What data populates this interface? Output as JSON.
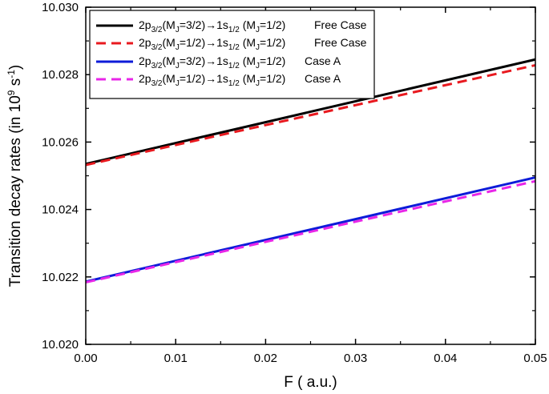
{
  "chart_data": {
    "type": "line",
    "xlabel": "F ( a.u.)",
    "ylabel": "Transition decay rates (in 10",
    "ylabel_sup1": "9",
    "ylabel_mid": " s",
    "ylabel_sup2": "-1",
    "ylabel_end": ")",
    "xlim": [
      0.0,
      0.05
    ],
    "ylim": [
      10.02,
      10.03
    ],
    "x_ticks": [
      "0.00",
      "0.01",
      "0.02",
      "0.03",
      "0.04",
      "0.05"
    ],
    "y_ticks": [
      "10.020",
      "10.022",
      "10.024",
      "10.026",
      "10.028",
      "10.030"
    ],
    "grid": false,
    "legend_position": "top-left",
    "series": [
      {
        "color": "#000000",
        "dash": "solid",
        "x": [
          0.0,
          0.05
        ],
        "y": [
          10.02535,
          10.02845
        ],
        "legend": {
          "pre": "2p",
          "sub1": "3/2",
          "a": "(M",
          "sub2": "J",
          "b": "=3/2)→1s",
          "sub3": "1/2",
          "c": " (M",
          "sub4": "J",
          "d": "=1/2)",
          "case": "Free Case"
        }
      },
      {
        "color": "#e8191f",
        "dash": "dashed",
        "x": [
          0.0,
          0.05
        ],
        "y": [
          10.02532,
          10.02828
        ],
        "legend": {
          "pre": "2p",
          "sub1": "3/2",
          "a": "(M",
          "sub2": "J",
          "b": "=1/2)→1s",
          "sub3": "1/2",
          "c": " (M",
          "sub4": "J",
          "d": "=1/2)",
          "case": "Free Case"
        }
      },
      {
        "color": "#0d1bd9",
        "dash": "solid",
        "x": [
          0.0,
          0.05
        ],
        "y": [
          10.02186,
          10.02495
        ],
        "legend": {
          "pre": "2p",
          "sub1": "3/2",
          "a": "(M",
          "sub2": "J",
          "b": "=3/2)→1s",
          "sub3": "1/2",
          "c": " (M",
          "sub4": "J",
          "d": "=1/2)",
          "case": "Case A"
        }
      },
      {
        "color": "#e826e8",
        "dash": "dashed",
        "x": [
          0.0,
          0.05
        ],
        "y": [
          10.02184,
          10.02484
        ],
        "legend": {
          "pre": "2p",
          "sub1": "3/2",
          "a": "(M",
          "sub2": "J",
          "b": "=1/2)→1s",
          "sub3": "1/2",
          "c": " (M",
          "sub4": "J",
          "d": "=1/2)",
          "case": "Case A"
        }
      }
    ]
  }
}
